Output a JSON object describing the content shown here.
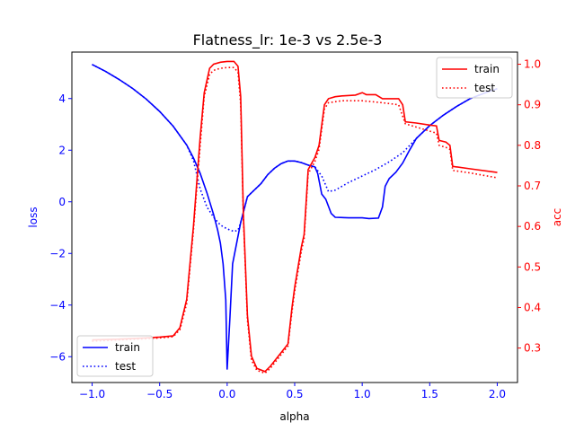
{
  "chart_data": {
    "type": "line",
    "title": "Flatness_lr: 1e-3 vs 2.5e-3",
    "xlabel": "alpha",
    "xlim": [
      -1.15,
      2.15
    ],
    "xticks": [
      -1.0,
      -0.5,
      0.0,
      0.5,
      1.0,
      1.5,
      2.0
    ],
    "xtick_labels": [
      "−1.0",
      "−0.5",
      "0.0",
      "0.5",
      "1.0",
      "1.5",
      "2.0"
    ],
    "left_axis": {
      "label": "loss",
      "color": "#0000ff",
      "ylim": [
        -7.0,
        5.8
      ],
      "ticks": [
        -6,
        -4,
        -2,
        0,
        2,
        4
      ],
      "tick_labels": [
        "−6",
        "−4",
        "−2",
        "0",
        "2",
        "4"
      ]
    },
    "right_axis": {
      "label": "acc",
      "color": "#ff0000",
      "ylim": [
        0.215,
        1.03
      ],
      "ticks": [
        0.3,
        0.4,
        0.5,
        0.6,
        0.7,
        0.8,
        0.9,
        1.0
      ],
      "tick_labels": [
        "0.3",
        "0.4",
        "0.5",
        "0.6",
        "0.7",
        "0.8",
        "0.9",
        "1.0"
      ]
    },
    "legend_left": {
      "placement": "lower-left",
      "entries": [
        "train",
        "test"
      ]
    },
    "legend_right": {
      "placement": "upper-right",
      "entries": [
        "train",
        "test"
      ]
    },
    "series": [
      {
        "name": "train",
        "axis": "left",
        "color": "#0000ff",
        "style": "solid",
        "points": [
          [
            -1.0,
            5.32
          ],
          [
            -0.9,
            5.05
          ],
          [
            -0.8,
            4.74
          ],
          [
            -0.7,
            4.39
          ],
          [
            -0.6,
            3.98
          ],
          [
            -0.5,
            3.5
          ],
          [
            -0.4,
            2.93
          ],
          [
            -0.3,
            2.2
          ],
          [
            -0.25,
            1.7
          ],
          [
            -0.2,
            1.1
          ],
          [
            -0.15,
            0.35
          ],
          [
            -0.1,
            -0.5
          ],
          [
            -0.07,
            -1.1
          ],
          [
            -0.05,
            -1.6
          ],
          [
            -0.03,
            -2.4
          ],
          [
            -0.01,
            -3.8
          ],
          [
            0.0,
            -6.5
          ],
          [
            0.02,
            -4.5
          ],
          [
            0.04,
            -2.4
          ],
          [
            0.07,
            -1.6
          ],
          [
            0.1,
            -0.8
          ],
          [
            0.15,
            0.2
          ],
          [
            0.2,
            0.45
          ],
          [
            0.25,
            0.7
          ],
          [
            0.3,
            1.05
          ],
          [
            0.35,
            1.3
          ],
          [
            0.4,
            1.48
          ],
          [
            0.45,
            1.58
          ],
          [
            0.5,
            1.58
          ],
          [
            0.55,
            1.52
          ],
          [
            0.6,
            1.42
          ],
          [
            0.65,
            1.35
          ],
          [
            0.67,
            1.1
          ],
          [
            0.7,
            0.3
          ],
          [
            0.73,
            0.1
          ],
          [
            0.77,
            -0.45
          ],
          [
            0.8,
            -0.6
          ],
          [
            0.9,
            -0.62
          ],
          [
            1.0,
            -0.62
          ],
          [
            1.05,
            -0.65
          ],
          [
            1.12,
            -0.63
          ],
          [
            1.15,
            -0.2
          ],
          [
            1.17,
            0.6
          ],
          [
            1.2,
            0.9
          ],
          [
            1.25,
            1.15
          ],
          [
            1.3,
            1.5
          ],
          [
            1.35,
            2.0
          ],
          [
            1.4,
            2.45
          ],
          [
            1.5,
            2.95
          ],
          [
            1.6,
            3.35
          ],
          [
            1.7,
            3.7
          ],
          [
            1.8,
            4.0
          ],
          [
            1.9,
            4.2
          ],
          [
            2.0,
            4.38
          ]
        ]
      },
      {
        "name": "test",
        "axis": "left",
        "color": "#0000ff",
        "style": "dotted",
        "points": [
          [
            -1.0,
            5.32
          ],
          [
            -0.9,
            5.05
          ],
          [
            -0.8,
            4.74
          ],
          [
            -0.7,
            4.39
          ],
          [
            -0.6,
            3.98
          ],
          [
            -0.5,
            3.5
          ],
          [
            -0.4,
            2.93
          ],
          [
            -0.3,
            2.2
          ],
          [
            -0.25,
            1.6
          ],
          [
            -0.2,
            0.5
          ],
          [
            -0.15,
            -0.2
          ],
          [
            -0.1,
            -0.6
          ],
          [
            -0.05,
            -0.9
          ],
          [
            0.0,
            -1.05
          ],
          [
            0.05,
            -1.15
          ],
          [
            0.08,
            -1.1
          ],
          [
            0.1,
            -0.8
          ],
          [
            0.15,
            0.2
          ],
          [
            0.2,
            0.45
          ],
          [
            0.25,
            0.7
          ],
          [
            0.3,
            1.05
          ],
          [
            0.35,
            1.3
          ],
          [
            0.4,
            1.48
          ],
          [
            0.45,
            1.58
          ],
          [
            0.5,
            1.58
          ],
          [
            0.55,
            1.52
          ],
          [
            0.6,
            1.42
          ],
          [
            0.65,
            1.35
          ],
          [
            0.7,
            1.0
          ],
          [
            0.75,
            0.4
          ],
          [
            0.8,
            0.45
          ],
          [
            0.9,
            0.75
          ],
          [
            1.0,
            1.0
          ],
          [
            1.1,
            1.25
          ],
          [
            1.2,
            1.55
          ],
          [
            1.3,
            1.9
          ],
          [
            1.4,
            2.45
          ],
          [
            1.5,
            2.95
          ],
          [
            1.6,
            3.35
          ],
          [
            1.7,
            3.7
          ],
          [
            1.8,
            4.0
          ],
          [
            1.9,
            4.2
          ],
          [
            2.0,
            4.38
          ]
        ]
      },
      {
        "name": "train",
        "axis": "right",
        "color": "#ff0000",
        "style": "solid",
        "points": [
          [
            -1.0,
            0.32
          ],
          [
            -0.8,
            0.322
          ],
          [
            -0.6,
            0.325
          ],
          [
            -0.5,
            0.327
          ],
          [
            -0.4,
            0.33
          ],
          [
            -0.35,
            0.35
          ],
          [
            -0.3,
            0.42
          ],
          [
            -0.25,
            0.6
          ],
          [
            -0.2,
            0.82
          ],
          [
            -0.17,
            0.93
          ],
          [
            -0.13,
            0.99
          ],
          [
            -0.1,
            1.0
          ],
          [
            -0.05,
            1.005
          ],
          [
            0.0,
            1.007
          ],
          [
            0.05,
            1.007
          ],
          [
            0.08,
            0.995
          ],
          [
            0.1,
            0.92
          ],
          [
            0.12,
            0.63
          ],
          [
            0.15,
            0.38
          ],
          [
            0.18,
            0.28
          ],
          [
            0.22,
            0.25
          ],
          [
            0.28,
            0.242
          ],
          [
            0.32,
            0.255
          ],
          [
            0.45,
            0.31
          ],
          [
            0.48,
            0.4
          ],
          [
            0.5,
            0.45
          ],
          [
            0.55,
            0.55
          ],
          [
            0.57,
            0.58
          ],
          [
            0.6,
            0.74
          ],
          [
            0.65,
            0.77
          ],
          [
            0.68,
            0.8
          ],
          [
            0.72,
            0.9
          ],
          [
            0.75,
            0.915
          ],
          [
            0.8,
            0.92
          ],
          [
            0.85,
            0.922
          ],
          [
            0.95,
            0.924
          ],
          [
            1.0,
            0.93
          ],
          [
            1.03,
            0.925
          ],
          [
            1.1,
            0.925
          ],
          [
            1.15,
            0.915
          ],
          [
            1.2,
            0.915
          ],
          [
            1.27,
            0.915
          ],
          [
            1.3,
            0.9
          ],
          [
            1.32,
            0.858
          ],
          [
            1.4,
            0.855
          ],
          [
            1.5,
            0.85
          ],
          [
            1.55,
            0.848
          ],
          [
            1.57,
            0.812
          ],
          [
            1.62,
            0.808
          ],
          [
            1.65,
            0.8
          ],
          [
            1.67,
            0.748
          ],
          [
            1.8,
            0.742
          ],
          [
            2.0,
            0.733
          ]
        ]
      },
      {
        "name": "test",
        "axis": "right",
        "color": "#ff0000",
        "style": "dotted",
        "points": [
          [
            -1.0,
            0.317
          ],
          [
            -0.8,
            0.32
          ],
          [
            -0.6,
            0.323
          ],
          [
            -0.5,
            0.325
          ],
          [
            -0.4,
            0.328
          ],
          [
            -0.35,
            0.345
          ],
          [
            -0.3,
            0.41
          ],
          [
            -0.25,
            0.59
          ],
          [
            -0.2,
            0.8
          ],
          [
            -0.17,
            0.92
          ],
          [
            -0.13,
            0.975
          ],
          [
            -0.1,
            0.985
          ],
          [
            -0.05,
            0.99
          ],
          [
            0.0,
            0.992
          ],
          [
            0.05,
            0.992
          ],
          [
            0.08,
            0.98
          ],
          [
            0.1,
            0.9
          ],
          [
            0.12,
            0.62
          ],
          [
            0.15,
            0.37
          ],
          [
            0.18,
            0.27
          ],
          [
            0.22,
            0.245
          ],
          [
            0.28,
            0.238
          ],
          [
            0.32,
            0.25
          ],
          [
            0.45,
            0.305
          ],
          [
            0.48,
            0.39
          ],
          [
            0.5,
            0.44
          ],
          [
            0.55,
            0.54
          ],
          [
            0.57,
            0.57
          ],
          [
            0.6,
            0.73
          ],
          [
            0.65,
            0.76
          ],
          [
            0.68,
            0.79
          ],
          [
            0.72,
            0.89
          ],
          [
            0.75,
            0.905
          ],
          [
            0.85,
            0.91
          ],
          [
            1.0,
            0.91
          ],
          [
            1.15,
            0.905
          ],
          [
            1.27,
            0.9
          ],
          [
            1.32,
            0.853
          ],
          [
            1.4,
            0.845
          ],
          [
            1.5,
            0.835
          ],
          [
            1.55,
            0.83
          ],
          [
            1.57,
            0.8
          ],
          [
            1.62,
            0.795
          ],
          [
            1.65,
            0.79
          ],
          [
            1.67,
            0.738
          ],
          [
            1.8,
            0.732
          ],
          [
            2.0,
            0.72
          ]
        ]
      }
    ]
  }
}
